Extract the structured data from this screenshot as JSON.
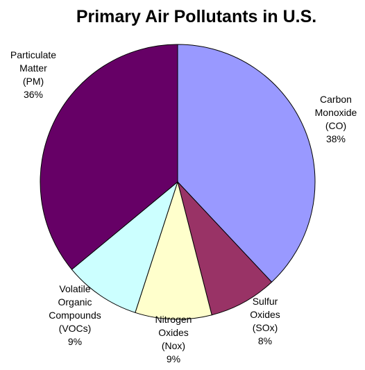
{
  "chart_data": {
    "type": "pie",
    "title": "Primary Air Pollutants in U.S.",
    "legend": "none",
    "slices": [
      {
        "key": "co",
        "label_lines": [
          "Carbon",
          "Monoxide",
          "(CO)",
          "38%"
        ],
        "value": 38,
        "color": "#9999ff"
      },
      {
        "key": "sox",
        "label_lines": [
          "Sulfur",
          "Oxides",
          "(SOx)",
          "8%"
        ],
        "value": 8,
        "color": "#993366"
      },
      {
        "key": "nox",
        "label_lines": [
          "Nitrogen",
          "Oxides",
          "(Nox)",
          "9%"
        ],
        "value": 9,
        "color": "#ffffcc"
      },
      {
        "key": "vocs",
        "label_lines": [
          "Volatile",
          "Organic",
          "Compounds",
          "(VOCs)",
          "9%"
        ],
        "value": 9,
        "color": "#ccffff"
      },
      {
        "key": "pm",
        "label_lines": [
          "Particulate",
          "Matter",
          "(PM)",
          "36%"
        ],
        "value": 36,
        "color": "#660066"
      }
    ]
  }
}
